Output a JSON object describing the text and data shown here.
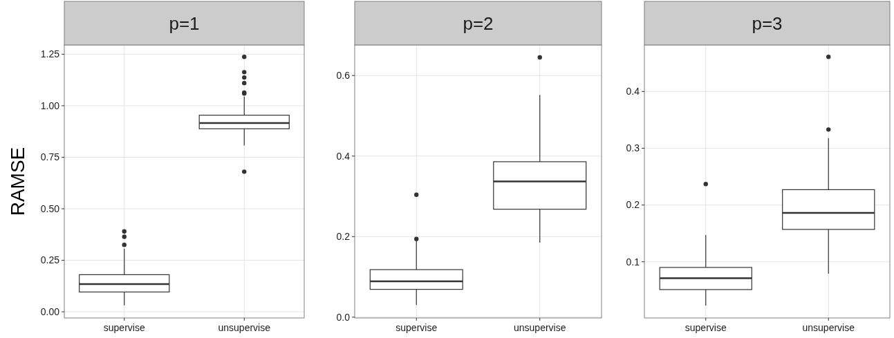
{
  "chart_data": [
    {
      "type": "box",
      "title": "p=1",
      "ylabel": "RAMSE",
      "categories": [
        "supervise",
        "unsupervise"
      ],
      "ylim": [
        -0.03,
        1.295
      ],
      "yticks": [
        {
          "value": 0,
          "label": "0.00"
        },
        0.25,
        {
          "value": 0.5,
          "label": "0.50"
        },
        0.75,
        {
          "value": 1,
          "label": "1.00"
        },
        1.25
      ],
      "grid": true,
      "boxes": [
        {
          "low": 0.031,
          "q1": 0.096,
          "median": 0.134,
          "q3": 0.18,
          "high": 0.306,
          "outliers": [
            0.325,
            0.364,
            0.39
          ]
        },
        {
          "low": 0.807,
          "q1": 0.888,
          "median": 0.916,
          "q3": 0.954,
          "high": 1.044,
          "outliers": [
            0.68,
            1.059,
            1.064,
            1.11,
            1.137,
            1.163,
            1.237
          ]
        }
      ]
    },
    {
      "type": "box",
      "title": "p=2",
      "categories": [
        "supervise",
        "unsupervise"
      ],
      "ylim": [
        -0.002,
        0.676
      ],
      "yticks": [
        {
          "value": 0,
          "label": "0.0"
        },
        0.2,
        0.4,
        0.6
      ],
      "grid": true,
      "boxes": [
        {
          "low": 0.03,
          "q1": 0.069,
          "median": 0.089,
          "q3": 0.118,
          "high": 0.189,
          "outliers": [
            0.194,
            0.304
          ]
        },
        {
          "low": 0.185,
          "q1": 0.268,
          "median": 0.337,
          "q3": 0.386,
          "high": 0.552,
          "outliers": [
            0.645
          ]
        }
      ]
    },
    {
      "type": "box",
      "title": "p=3",
      "categories": [
        "supervise",
        "unsupervise"
      ],
      "ylim": [
        0.001,
        0.482
      ],
      "yticks": [
        0.1,
        0.2,
        0.3,
        0.4
      ],
      "grid": true,
      "boxes": [
        {
          "low": 0.023,
          "q1": 0.051,
          "median": 0.071,
          "q3": 0.09,
          "high": 0.147,
          "outliers": [
            0.237
          ]
        },
        {
          "low": 0.079,
          "q1": 0.157,
          "median": 0.186,
          "q3": 0.227,
          "high": 0.318,
          "outliers": [
            0.333,
            0.461
          ]
        }
      ]
    }
  ]
}
